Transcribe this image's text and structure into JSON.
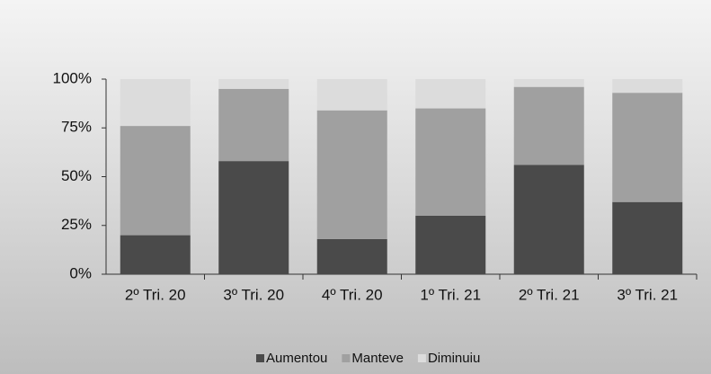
{
  "chart_data": {
    "type": "stacked_bar",
    "categories": [
      "2º Tri. 20",
      "3º Tri. 20",
      "4º Tri. 20",
      "1º Tri. 21",
      "2º Tri. 21",
      "3º Tri. 21"
    ],
    "series": [
      {
        "name": "Aumentou",
        "color": "#4a4a4a",
        "values": [
          20,
          58,
          18,
          30,
          56,
          37
        ]
      },
      {
        "name": "Manteve",
        "color": "#a0a0a0",
        "values": [
          56,
          37,
          66,
          55,
          40,
          56
        ]
      },
      {
        "name": "Diminuiu",
        "color": "#dcdcdc",
        "values": [
          24,
          5,
          16,
          15,
          4,
          7
        ]
      }
    ],
    "ylim": [
      0,
      100
    ],
    "yticks": [
      {
        "value": 0,
        "label": "0%"
      },
      {
        "value": 25,
        "label": "25%"
      },
      {
        "value": 50,
        "label": "50%"
      },
      {
        "value": 75,
        "label": "75%"
      },
      {
        "value": 100,
        "label": "100%"
      }
    ],
    "legend": "bottom"
  }
}
